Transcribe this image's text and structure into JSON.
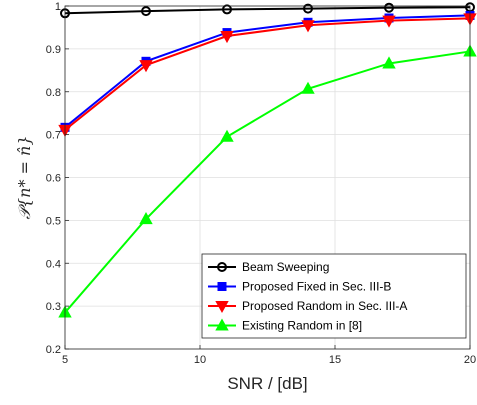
{
  "chart_data": {
    "type": "line",
    "title": "",
    "xlabel": "SNR / [dB]",
    "ylabel": "𝒫{n* = n̂}",
    "xlim": [
      5,
      20
    ],
    "ylim": [
      0.2,
      1
    ],
    "xticks": [
      5,
      10,
      15,
      20
    ],
    "yticks": [
      0.2,
      0.3,
      0.4,
      0.5,
      0.6,
      0.7,
      0.8,
      0.9,
      1
    ],
    "xtick_labels": [
      "5",
      "10",
      "15",
      "20"
    ],
    "ytick_labels": [
      "0.2",
      "0.3",
      "0.4",
      "0.5",
      "0.6",
      "0.7",
      "0.8",
      "0.9",
      "1"
    ],
    "grid": true,
    "legend_position": "bottom-right",
    "x": [
      5,
      8,
      11,
      14,
      17,
      20
    ],
    "series": [
      {
        "name": "Beam Sweeping",
        "color": "#000000",
        "marker": "circle",
        "values": [
          0.983,
          0.988,
          0.992,
          0.994,
          0.996,
          0.997
        ]
      },
      {
        "name": "Proposed Fixed in Sec. III-B",
        "color": "#0000ff",
        "marker": "square",
        "values": [
          0.717,
          0.871,
          0.938,
          0.962,
          0.972,
          0.978
        ]
      },
      {
        "name": "Proposed Random in Sec. III-A",
        "color": "#ff0000",
        "marker": "triangle-down",
        "values": [
          0.711,
          0.862,
          0.93,
          0.955,
          0.966,
          0.971
        ]
      },
      {
        "name": "Existing Random in [8]",
        "color": "#00ff00",
        "marker": "triangle-up",
        "values": [
          0.285,
          0.503,
          0.695,
          0.807,
          0.866,
          0.894
        ]
      }
    ]
  }
}
